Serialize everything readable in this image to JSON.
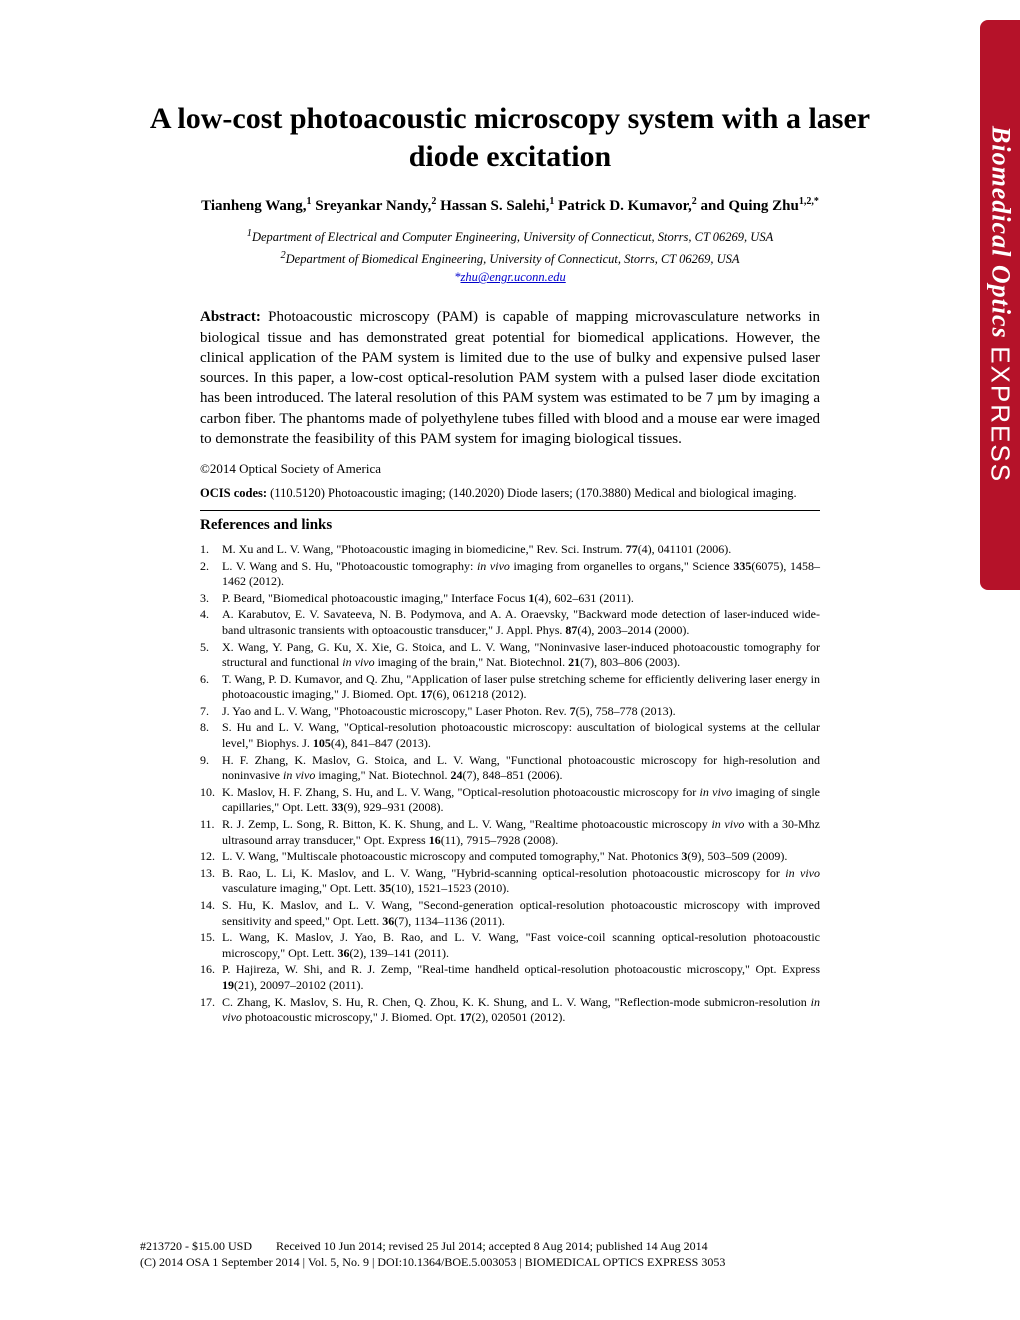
{
  "banner": {
    "journal": "Biomedical Optics",
    "suffix": "EXPRESS",
    "bg_color": "#b51229",
    "text_color": "#ffffff"
  },
  "title": "A low-cost photoacoustic microscopy system with a laser diode excitation",
  "authors_html": "Tianheng Wang,^1 Sreyankar Nandy,^2 Hassan S. Salehi,^1 Patrick D. Kumavor,^2 and Quing Zhu^1,2,*",
  "authors": [
    {
      "name": "Tianheng Wang",
      "sup": "1"
    },
    {
      "name": "Sreyankar Nandy",
      "sup": "2"
    },
    {
      "name": "Hassan S. Salehi",
      "sup": "1"
    },
    {
      "name": "Patrick D. Kumavor",
      "sup": "2"
    },
    {
      "name": "Quing Zhu",
      "sup": "1,2,*"
    }
  ],
  "affiliations": [
    {
      "sup": "1",
      "text": "Department of Electrical and Computer Engineering, University of Connecticut, Storrs, CT 06269, USA"
    },
    {
      "sup": "2",
      "text": "Department of Biomedical Engineering, University of Connecticut, Storrs, CT 06269, USA"
    }
  ],
  "email": "zhu@engr.uconn.edu",
  "email_prefix": "*",
  "abstract_label": "Abstract:",
  "abstract": "Photoacoustic microscopy (PAM) is capable of mapping microvasculature networks in biological tissue and has demonstrated great potential for biomedical applications. However, the clinical application of the PAM system is limited due to the use of bulky and expensive pulsed laser sources. In this paper, a low-cost optical-resolution PAM system with a pulsed laser diode excitation has been introduced. The lateral resolution of this PAM system was estimated to be 7 µm by imaging a carbon fiber. The phantoms made of polyethylene tubes filled with blood and a mouse ear were imaged to demonstrate the feasibility of this PAM system for imaging biological tissues.",
  "copyright": "©2014 Optical Society of America",
  "ocis_label": "OCIS codes:",
  "ocis": "(110.5120) Photoacoustic imaging; (140.2020) Diode lasers; (170.3880) Medical and biological imaging.",
  "refs_heading": "References and links",
  "references": [
    {
      "n": "1.",
      "t": "M. Xu and L. V. Wang, \"Photoacoustic imaging in biomedicine,\" Rev. Sci. Instrum. 77(4), 041101 (2006)."
    },
    {
      "n": "2.",
      "t": "L. V. Wang and S. Hu, \"Photoacoustic tomography: in vivo imaging from organelles to organs,\" Science 335(6075), 1458–1462 (2012)."
    },
    {
      "n": "3.",
      "t": "P. Beard, \"Biomedical photoacoustic imaging,\" Interface Focus 1(4), 602–631 (2011)."
    },
    {
      "n": "4.",
      "t": "A. Karabutov, E. V. Savateeva, N. B. Podymova, and A. A. Oraevsky, \"Backward mode detection of laser-induced wide-band ultrasonic transients with optoacoustic transducer,\" J. Appl. Phys. 87(4), 2003–2014 (2000)."
    },
    {
      "n": "5.",
      "t": "X. Wang, Y. Pang, G. Ku, X. Xie, G. Stoica, and L. V. Wang, \"Noninvasive laser-induced photoacoustic tomography for structural and functional in vivo imaging of the brain,\" Nat. Biotechnol. 21(7), 803–806 (2003)."
    },
    {
      "n": "6.",
      "t": "T. Wang, P. D. Kumavor, and Q. Zhu, \"Application of laser pulse stretching scheme for efficiently delivering laser energy in photoacoustic imaging,\" J. Biomed. Opt. 17(6), 061218 (2012)."
    },
    {
      "n": "7.",
      "t": "J. Yao and L. V. Wang, \"Photoacoustic microscopy,\" Laser Photon. Rev. 7(5), 758–778 (2013)."
    },
    {
      "n": "8.",
      "t": "S. Hu and L. V. Wang, \"Optical-resolution photoacoustic microscopy: auscultation of biological systems at the cellular level,\" Biophys. J. 105(4), 841–847 (2013)."
    },
    {
      "n": "9.",
      "t": "H. F. Zhang, K. Maslov, G. Stoica, and L. V. Wang, \"Functional photoacoustic microscopy for high-resolution and noninvasive in vivo imaging,\" Nat. Biotechnol. 24(7), 848–851 (2006)."
    },
    {
      "n": "10.",
      "t": "K. Maslov, H. F. Zhang, S. Hu, and L. V. Wang, \"Optical-resolution photoacoustic microscopy for in vivo imaging of single capillaries,\" Opt. Lett. 33(9), 929–931 (2008)."
    },
    {
      "n": "11.",
      "t": "R. J. Zemp, L. Song, R. Bitton, K. K. Shung, and L. V. Wang, \"Realtime photoacoustic microscopy in vivo with a 30-Mhz ultrasound array transducer,\" Opt. Express 16(11), 7915–7928 (2008)."
    },
    {
      "n": "12.",
      "t": "L. V. Wang, \"Multiscale photoacoustic microscopy and computed tomography,\" Nat. Photonics 3(9), 503–509 (2009)."
    },
    {
      "n": "13.",
      "t": "B. Rao, L. Li, K. Maslov, and L. V. Wang, \"Hybrid-scanning optical-resolution photoacoustic microscopy for in vivo vasculature imaging,\" Opt. Lett. 35(10), 1521–1523 (2010)."
    },
    {
      "n": "14.",
      "t": "S. Hu, K. Maslov, and L. V. Wang, \"Second-generation optical-resolution photoacoustic microscopy with improved sensitivity and speed,\" Opt. Lett. 36(7), 1134–1136 (2011)."
    },
    {
      "n": "15.",
      "t": "L. Wang, K. Maslov, J. Yao, B. Rao, and L. V. Wang, \"Fast voice-coil scanning optical-resolution photoacoustic microscopy,\" Opt. Lett. 36(2), 139–141 (2011)."
    },
    {
      "n": "16.",
      "t": "P. Hajireza, W. Shi, and R. J. Zemp, \"Real-time handheld optical-resolution photoacoustic microscopy,\" Opt. Express 19(21), 20097–20102 (2011)."
    },
    {
      "n": "17.",
      "t": "C. Zhang, K. Maslov, S. Hu, R. Chen, Q. Zhou, K. K. Shung, and L. V. Wang, \"Reflection-mode submicron-resolution in vivo photoacoustic microscopy,\" J. Biomed. Opt. 17(2), 020501 (2012)."
    }
  ],
  "footer": {
    "line1_left": "#213720 - $15.00 USD",
    "line1_right": "Received 10 Jun 2014; revised 25 Jul 2014; accepted 8 Aug 2014; published 14 Aug 2014",
    "line2": "(C) 2014 OSA     1 September 2014 | Vol. 5,  No. 9 | DOI:10.1364/BOE.5.003053 | BIOMEDICAL OPTICS EXPRESS  3053"
  }
}
